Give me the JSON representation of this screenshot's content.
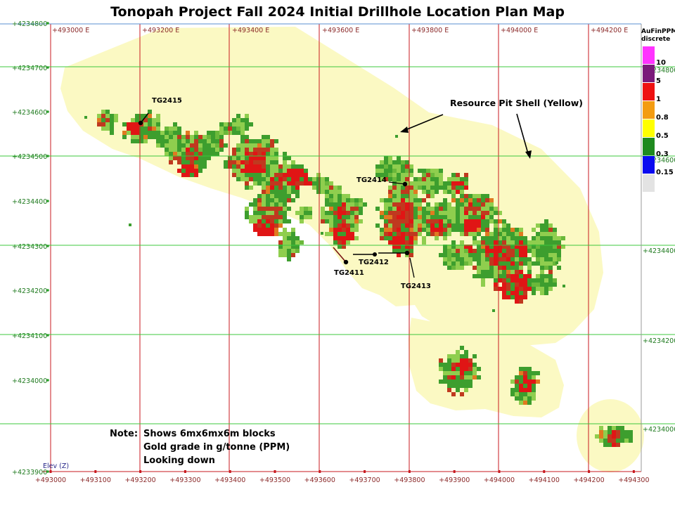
{
  "title": "Tonopah Project Fall 2024 Initial Drillhole Location Plan Map",
  "colors": {
    "pit_shell": "#fbf9c3",
    "easting_line": "#c8191f",
    "northing_line": "#3cc83c",
    "grade_high": "#e01515",
    "grade_mid": "#c0391f",
    "grade_low": "#3d9e2e",
    "grade_vlow": "#8fce4e"
  },
  "eastings_top": [
    "+493000 E",
    "+493200 E",
    "+493400 E",
    "+493600 E",
    "+493800 E",
    "+494000 E",
    "+494200 E"
  ],
  "eastings_bottom": [
    "+493000",
    "+493100",
    "+493200",
    "+493300",
    "+493400",
    "+493500",
    "+493600",
    "+493700",
    "+493800",
    "+493900",
    "+494000",
    "+494100",
    "+494200",
    "+494300"
  ],
  "northings_left": [
    "+4234800",
    "+4234700",
    "+4234600",
    "+4234500",
    "+4234400",
    "+4234300",
    "+4234200",
    "+4234100",
    "+4234000",
    "+4233900"
  ],
  "northings_right": [
    "+4234800",
    "+4234600",
    "+4234400",
    "+4234200",
    "+4234000"
  ],
  "elev_label": "Elev (Z)",
  "annotation": "Resource Pit Shell (Yellow)",
  "drillholes": [
    "TG2415",
    "TG2414",
    "TG2411",
    "TG2412",
    "TG2413"
  ],
  "note": {
    "prefix": "Note:",
    "lines": [
      "Shows 6mx6mx6m blocks",
      "Gold grade in g/tonne (PPM)",
      "Looking down"
    ]
  },
  "legend": {
    "title_line1": "AuFinPPM",
    "title_line2": "discrete",
    "items": [
      {
        "label": "10",
        "color": "#ff33ff"
      },
      {
        "label": "5",
        "color": "#7a1a7a"
      },
      {
        "label": "1",
        "color": "#ee1111"
      },
      {
        "label": "0.8",
        "color": "#f39c12"
      },
      {
        "label": "0.5",
        "color": "#ffff00"
      },
      {
        "label": "0.3",
        "color": "#1f8a1f"
      },
      {
        "label": "0.15",
        "color": "#0a0af0"
      },
      {
        "label": "",
        "color": "#e3e3e3"
      }
    ]
  }
}
